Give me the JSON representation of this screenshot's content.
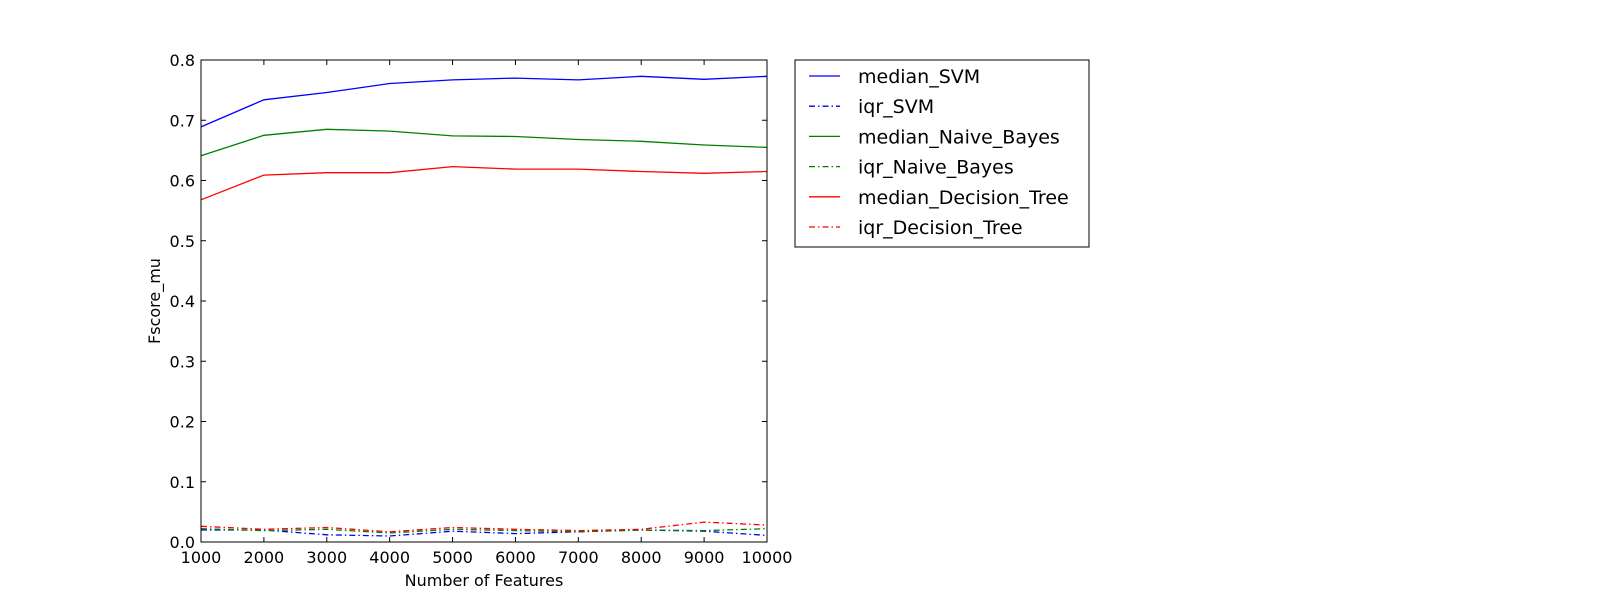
{
  "chart_data": {
    "type": "line",
    "title": "",
    "xlabel": "Number of Features",
    "ylabel": "Fscore_mu",
    "x": [
      1000,
      2000,
      3000,
      4000,
      5000,
      6000,
      7000,
      8000,
      9000,
      10000
    ],
    "xlim": [
      1000,
      10000
    ],
    "ylim": [
      0.0,
      0.8
    ],
    "xticks": [
      "1000",
      "2000",
      "3000",
      "4000",
      "5000",
      "6000",
      "7000",
      "8000",
      "9000",
      "10000"
    ],
    "yticks": [
      "0.0",
      "0.1",
      "0.2",
      "0.3",
      "0.4",
      "0.5",
      "0.6",
      "0.7",
      "0.8"
    ],
    "grid": false,
    "legend_position": "outside-right-top",
    "series": [
      {
        "name": "median_SVM",
        "color": "#0000ff",
        "style": "solid",
        "values": [
          0.689,
          0.734,
          0.746,
          0.761,
          0.767,
          0.77,
          0.767,
          0.773,
          0.768,
          0.773
        ]
      },
      {
        "name": "iqr_SVM",
        "color": "#0000ff",
        "style": "dashdot",
        "values": [
          0.02,
          0.02,
          0.012,
          0.01,
          0.018,
          0.014,
          0.017,
          0.02,
          0.018,
          0.011
        ]
      },
      {
        "name": "median_Naive_Bayes",
        "color": "#008000",
        "style": "solid",
        "values": [
          0.641,
          0.675,
          0.685,
          0.682,
          0.674,
          0.673,
          0.668,
          0.665,
          0.659,
          0.655
        ]
      },
      {
        "name": "iqr_Naive_Bayes",
        "color": "#008000",
        "style": "dashdot",
        "values": [
          0.022,
          0.019,
          0.021,
          0.015,
          0.021,
          0.019,
          0.017,
          0.02,
          0.019,
          0.022
        ]
      },
      {
        "name": "median_Decision_Tree",
        "color": "#ff0000",
        "style": "solid",
        "values": [
          0.568,
          0.609,
          0.613,
          0.613,
          0.623,
          0.619,
          0.619,
          0.615,
          0.612,
          0.615
        ]
      },
      {
        "name": "iqr_Decision_Tree",
        "color": "#ff0000",
        "style": "dashdot",
        "values": [
          0.026,
          0.021,
          0.024,
          0.017,
          0.024,
          0.021,
          0.019,
          0.021,
          0.033,
          0.028
        ]
      }
    ]
  }
}
